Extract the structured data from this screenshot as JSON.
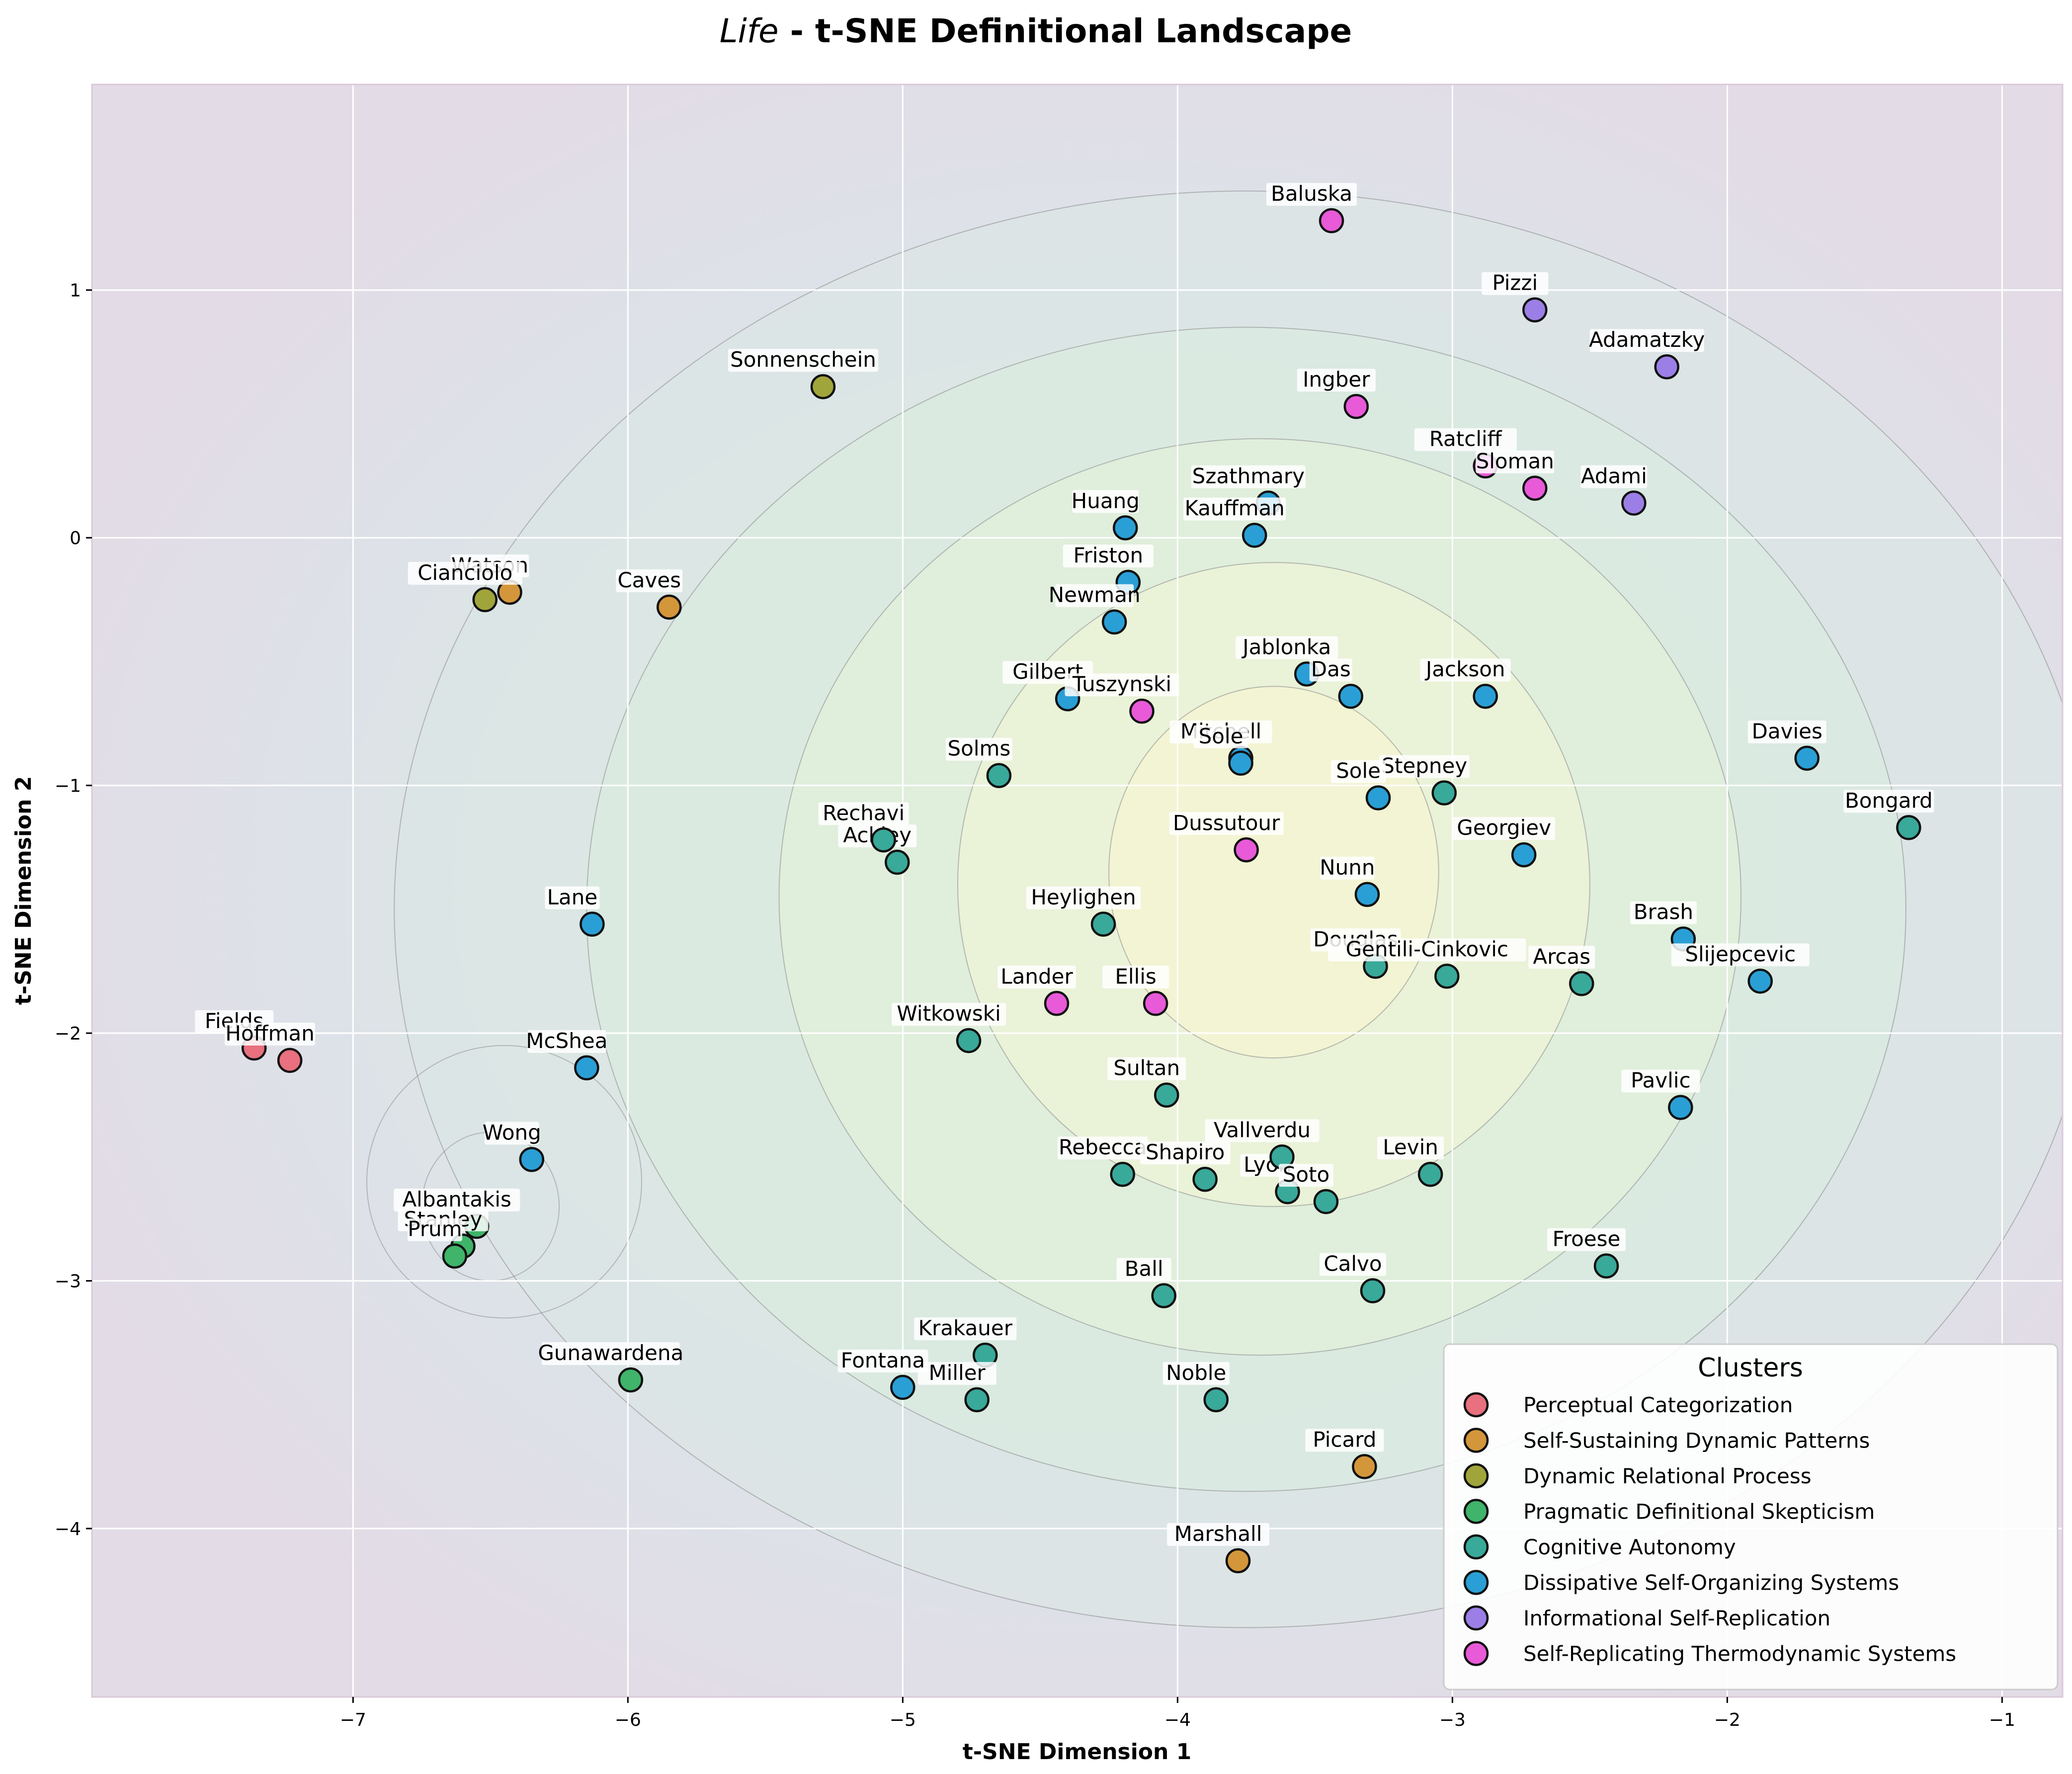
{
  "chart_data": {
    "type": "scatter",
    "title_italic": "Life",
    "title_rest": " - t-SNE Definitional Landscape",
    "xlabel": "t-SNE Dimension 1",
    "ylabel": "t-SNE Dimension 2",
    "xlim": [
      -7.95,
      -0.78
    ],
    "ylim": [
      -4.68,
      1.83
    ],
    "xticks": [
      -7,
      -6,
      -5,
      -4,
      -3,
      -2,
      -1
    ],
    "yticks": [
      -4,
      -3,
      -2,
      -1,
      0,
      1
    ],
    "xtick_labels": [
      "−7",
      "−6",
      "−5",
      "−4",
      "−3",
      "−2",
      "−1"
    ],
    "ytick_labels": [
      "−4",
      "−3",
      "−2",
      "−1",
      "0",
      "1"
    ],
    "grid": true,
    "density_background": true,
    "legend": {
      "title": "Clusters",
      "position": "lower-right"
    },
    "series": [
      {
        "name": "Perceptual Categorization",
        "color": "#e8707f",
        "points": [
          {
            "x": -7.36,
            "y": -2.06,
            "label": "Fields"
          },
          {
            "x": -7.23,
            "y": -2.11,
            "label": "Hoffman"
          }
        ]
      },
      {
        "name": "Self-Sustaining Dynamic Patterns",
        "color": "#d4963a",
        "points": [
          {
            "x": -6.43,
            "y": -0.22,
            "label": "Watson"
          },
          {
            "x": -5.85,
            "y": -0.28,
            "label": "Caves"
          },
          {
            "x": -3.32,
            "y": -3.75,
            "label": "Picard"
          },
          {
            "x": -3.78,
            "y": -4.13,
            "label": "Marshall"
          }
        ]
      },
      {
        "name": "Dynamic Relational Process",
        "color": "#a0a53b",
        "points": [
          {
            "x": -5.29,
            "y": 0.61,
            "label": "Sonnenschein"
          },
          {
            "x": -6.52,
            "y": -0.25,
            "label": "Cianciolo"
          }
        ]
      },
      {
        "name": "Pragmatic Definitional Skepticism",
        "color": "#3fb46a",
        "points": [
          {
            "x": -6.55,
            "y": -2.78,
            "label": "Albantakis"
          },
          {
            "x": -6.6,
            "y": -2.86,
            "label": "Stanley"
          },
          {
            "x": -6.63,
            "y": -2.9,
            "label": "Prum"
          },
          {
            "x": -5.99,
            "y": -3.4,
            "label": "Gunawardena"
          }
        ]
      },
      {
        "name": "Cognitive Autonomy",
        "color": "#39a99a",
        "points": [
          {
            "x": -4.65,
            "y": -0.96,
            "label": "Solms"
          },
          {
            "x": -5.02,
            "y": -1.31,
            "label": "Ackley"
          },
          {
            "x": -5.07,
            "y": -1.22,
            "label": "Rechavi"
          },
          {
            "x": -4.27,
            "y": -1.56,
            "label": "Heylighen"
          },
          {
            "x": -4.76,
            "y": -2.03,
            "label": "Witkowski"
          },
          {
            "x": -4.04,
            "y": -2.25,
            "label": "Sultan"
          },
          {
            "x": -4.2,
            "y": -2.57,
            "label": "Rebecca"
          },
          {
            "x": -3.9,
            "y": -2.59,
            "label": "Shapiro"
          },
          {
            "x": -3.6,
            "y": -2.64,
            "label": "Lyon"
          },
          {
            "x": -3.62,
            "y": -2.5,
            "label": "Vallverdu"
          },
          {
            "x": -3.46,
            "y": -2.68,
            "label": "Soto"
          },
          {
            "x": -3.08,
            "y": -2.57,
            "label": "Levin"
          },
          {
            "x": -3.28,
            "y": -1.73,
            "label": "Douglas"
          },
          {
            "x": -3.02,
            "y": -1.77,
            "label": "Gentili-Cinkovic"
          },
          {
            "x": -3.03,
            "y": -1.03,
            "label": "Stepney"
          },
          {
            "x": -2.53,
            "y": -1.8,
            "label": "Arcas"
          },
          {
            "x": -1.34,
            "y": -1.17,
            "label": "Bongard"
          },
          {
            "x": -2.44,
            "y": -2.94,
            "label": "Froese"
          },
          {
            "x": -3.29,
            "y": -3.04,
            "label": "Calvo"
          },
          {
            "x": -4.05,
            "y": -3.06,
            "label": "Ball"
          },
          {
            "x": -4.7,
            "y": -3.3,
            "label": "Krakauer"
          },
          {
            "x": -4.73,
            "y": -3.48,
            "label": "Miller"
          },
          {
            "x": -3.86,
            "y": -3.48,
            "label": "Noble"
          }
        ]
      },
      {
        "name": "Dissipative Self-Organizing Systems",
        "color": "#2a9fd6",
        "points": [
          {
            "x": -3.67,
            "y": 0.14,
            "label": "Szathmary"
          },
          {
            "x": -4.19,
            "y": 0.04,
            "label": "Huang"
          },
          {
            "x": -3.72,
            "y": 0.01,
            "label": "Kauffman"
          },
          {
            "x": -4.18,
            "y": -0.18,
            "label": "Friston"
          },
          {
            "x": -4.23,
            "y": -0.34,
            "label": "Newman"
          },
          {
            "x": -3.53,
            "y": -0.55,
            "label": "Jablonka"
          },
          {
            "x": -3.37,
            "y": -0.64,
            "label": "Das"
          },
          {
            "x": -2.88,
            "y": -0.64,
            "label": "Jackson"
          },
          {
            "x": -4.4,
            "y": -0.65,
            "label": "Gilbert"
          },
          {
            "x": -3.77,
            "y": -0.89,
            "label": "Mitchell"
          },
          {
            "x": -3.77,
            "y": -0.91,
            "label": "Sole"
          },
          {
            "x": -3.27,
            "y": -1.05,
            "label": "Sole"
          },
          {
            "x": -2.74,
            "y": -1.28,
            "label": "Georgiev"
          },
          {
            "x": -3.31,
            "y": -1.44,
            "label": "Nunn"
          },
          {
            "x": -1.71,
            "y": -0.89,
            "label": "Davies"
          },
          {
            "x": -2.16,
            "y": -1.62,
            "label": "Brash"
          },
          {
            "x": -1.88,
            "y": -1.79,
            "label": "Slijepcevic"
          },
          {
            "x": -2.17,
            "y": -2.3,
            "label": "Pavlic"
          },
          {
            "x": -6.13,
            "y": -1.56,
            "label": "Lane"
          },
          {
            "x": -6.15,
            "y": -2.14,
            "label": "McShea"
          },
          {
            "x": -6.35,
            "y": -2.51,
            "label": "Wong"
          },
          {
            "x": -5.0,
            "y": -3.43,
            "label": "Fontana"
          }
        ]
      },
      {
        "name": "Informational Self-Replication",
        "color": "#9b7fe6",
        "points": [
          {
            "x": -2.7,
            "y": 0.92,
            "label": "Pizzi"
          },
          {
            "x": -2.22,
            "y": 0.69,
            "label": "Adamatzky"
          },
          {
            "x": -2.34,
            "y": 0.14,
            "label": "Adami"
          }
        ]
      },
      {
        "name": "Self-Replicating Thermodynamic Systems",
        "color": "#e85ad8",
        "points": [
          {
            "x": -3.44,
            "y": 1.28,
            "label": "Baluska"
          },
          {
            "x": -3.35,
            "y": 0.53,
            "label": "Ingber"
          },
          {
            "x": -2.88,
            "y": 0.29,
            "label": "Ratcliff"
          },
          {
            "x": -2.7,
            "y": 0.2,
            "label": "Sloman"
          },
          {
            "x": -4.13,
            "y": -0.7,
            "label": "Tuszynski"
          },
          {
            "x": -3.75,
            "y": -1.26,
            "label": "Dussutour"
          },
          {
            "x": -4.44,
            "y": -1.88,
            "label": "Lander"
          },
          {
            "x": -4.08,
            "y": -1.88,
            "label": "Ellis"
          }
        ]
      }
    ]
  }
}
